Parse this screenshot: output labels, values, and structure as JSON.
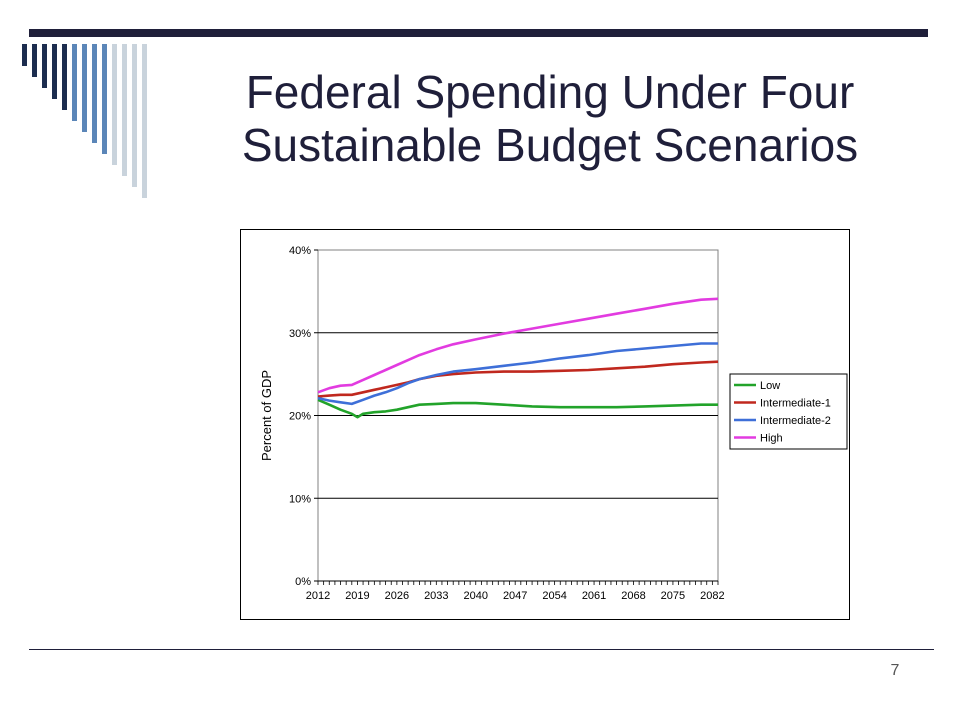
{
  "slide": {
    "title_line1": "Federal Spending Under Four",
    "title_line2": "Sustainable Budget Scenarios",
    "page_number": "7",
    "colors": {
      "title": "#1f1f3a",
      "stripe_dark": "#1c2d4f",
      "stripe_mid": "#5b86b8",
      "stripe_light": "#c9d3dc"
    }
  },
  "chart_data": {
    "type": "line",
    "title": "",
    "xlabel": "",
    "ylabel": "Percent of GDP",
    "xlim": [
      2012,
      2083
    ],
    "ylim": [
      0,
      40
    ],
    "x_tick_labels": [
      "2012",
      "2019",
      "2026",
      "2033",
      "2040",
      "2047",
      "2054",
      "2061",
      "2068",
      "2075",
      "2082"
    ],
    "y_tick_labels": [
      "0%",
      "10%",
      "20%",
      "30%",
      "40%"
    ],
    "grid": "horizontal",
    "legend_position": "right",
    "series": [
      {
        "name": "Low",
        "color": "#22a32a",
        "x": [
          2012,
          2014,
          2016,
          2018,
          2019,
          2020,
          2022,
          2024,
          2026,
          2028,
          2030,
          2033,
          2036,
          2040,
          2045,
          2050,
          2055,
          2060,
          2065,
          2070,
          2075,
          2080,
          2083
        ],
        "y": [
          21.9,
          21.3,
          20.7,
          20.2,
          19.8,
          20.2,
          20.4,
          20.5,
          20.7,
          21.0,
          21.3,
          21.4,
          21.5,
          21.5,
          21.3,
          21.1,
          21.0,
          21.0,
          21.0,
          21.1,
          21.2,
          21.3,
          21.3
        ]
      },
      {
        "name": "Intermediate-1",
        "color": "#c0281e",
        "x": [
          2012,
          2014,
          2016,
          2018,
          2020,
          2022,
          2024,
          2026,
          2028,
          2030,
          2033,
          2036,
          2040,
          2045,
          2050,
          2055,
          2060,
          2065,
          2070,
          2075,
          2080,
          2083
        ],
        "y": [
          22.3,
          22.4,
          22.5,
          22.5,
          22.8,
          23.1,
          23.4,
          23.7,
          24.0,
          24.4,
          24.8,
          25.0,
          25.2,
          25.3,
          25.3,
          25.4,
          25.5,
          25.7,
          25.9,
          26.2,
          26.4,
          26.5
        ]
      },
      {
        "name": "Intermediate-2",
        "color": "#3e6fd8",
        "x": [
          2012,
          2014,
          2016,
          2018,
          2020,
          2022,
          2024,
          2026,
          2028,
          2030,
          2033,
          2036,
          2040,
          2045,
          2050,
          2055,
          2060,
          2065,
          2070,
          2075,
          2080,
          2083
        ],
        "y": [
          22.1,
          21.8,
          21.6,
          21.4,
          21.9,
          22.4,
          22.8,
          23.3,
          23.9,
          24.4,
          24.9,
          25.3,
          25.6,
          26.0,
          26.4,
          26.9,
          27.3,
          27.8,
          28.1,
          28.4,
          28.7,
          28.7
        ]
      },
      {
        "name": "High",
        "color": "#e23be0",
        "x": [
          2012,
          2014,
          2016,
          2018,
          2020,
          2022,
          2024,
          2026,
          2028,
          2030,
          2033,
          2036,
          2040,
          2045,
          2050,
          2055,
          2060,
          2065,
          2070,
          2075,
          2080,
          2083
        ],
        "y": [
          22.8,
          23.3,
          23.6,
          23.7,
          24.3,
          24.9,
          25.5,
          26.1,
          26.7,
          27.3,
          28.0,
          28.6,
          29.2,
          29.9,
          30.5,
          31.1,
          31.7,
          32.3,
          32.9,
          33.5,
          34.0,
          34.1
        ]
      }
    ]
  }
}
